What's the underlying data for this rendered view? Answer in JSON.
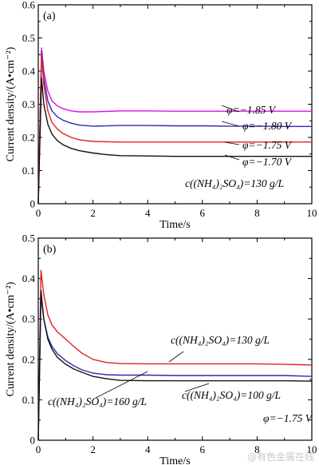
{
  "chart_data": [
    {
      "type": "line",
      "panel_label": "(a)",
      "xlabel": "Time/s",
      "ylabel": "Current density/(A•cm⁻²)",
      "xlim": [
        0,
        10
      ],
      "ylim": [
        0,
        0.6
      ],
      "x_ticks": [
        0,
        2,
        4,
        6,
        8,
        10
      ],
      "y_ticks": [
        "0",
        "0.1",
        "0.2",
        "0.3",
        "0.4",
        "0.5",
        "0.6"
      ],
      "condition_text": "c((NH₄)₂SO₄)=130 g/L",
      "series": [
        {
          "label": "φ=−1.85 V",
          "color": "#e010e0",
          "x": [
            0,
            0.12,
            0.2,
            0.35,
            0.5,
            0.7,
            0.9,
            1.2,
            1.5,
            2,
            3,
            4,
            5,
            6,
            7,
            8,
            9,
            10
          ],
          "y": [
            0.0,
            0.47,
            0.4,
            0.34,
            0.31,
            0.295,
            0.287,
            0.28,
            0.277,
            0.277,
            0.28,
            0.28,
            0.279,
            0.279,
            0.279,
            0.279,
            0.279,
            0.279
          ]
        },
        {
          "label": "φ=−1.80 V",
          "color": "#2a2ab8",
          "x": [
            0,
            0.12,
            0.2,
            0.35,
            0.5,
            0.7,
            0.9,
            1.2,
            1.5,
            2,
            3,
            4,
            5,
            6,
            7,
            8,
            9,
            10
          ],
          "y": [
            0.0,
            0.46,
            0.38,
            0.31,
            0.28,
            0.262,
            0.252,
            0.243,
            0.237,
            0.234,
            0.236,
            0.236,
            0.235,
            0.235,
            0.234,
            0.234,
            0.233,
            0.233
          ]
        },
        {
          "label": "φ=−1.75 V",
          "color": "#e02020",
          "x": [
            0,
            0.12,
            0.2,
            0.35,
            0.5,
            0.7,
            0.9,
            1.2,
            1.5,
            2,
            3,
            4,
            5,
            6,
            7,
            8,
            9,
            10
          ],
          "y": [
            0.0,
            0.45,
            0.36,
            0.28,
            0.245,
            0.225,
            0.212,
            0.2,
            0.193,
            0.188,
            0.186,
            0.186,
            0.186,
            0.186,
            0.186,
            0.186,
            0.186,
            0.186
          ]
        },
        {
          "label": "φ=−1.70 V",
          "color": "#111111",
          "x": [
            0,
            0.12,
            0.2,
            0.35,
            0.5,
            0.7,
            0.9,
            1.2,
            1.5,
            2,
            2.5,
            3,
            4,
            5,
            6,
            7,
            8,
            9,
            10
          ],
          "y": [
            0.0,
            0.38,
            0.3,
            0.24,
            0.21,
            0.19,
            0.178,
            0.167,
            0.16,
            0.153,
            0.148,
            0.145,
            0.144,
            0.143,
            0.143,
            0.143,
            0.143,
            0.143,
            0.143
          ]
        }
      ]
    },
    {
      "type": "line",
      "panel_label": "(b)",
      "xlabel": "Time/s",
      "ylabel": "Current density/(A•cm⁻²)",
      "xlim": [
        0,
        10
      ],
      "ylim": [
        0,
        0.5
      ],
      "x_ticks": [
        0,
        2,
        4,
        6,
        8,
        10
      ],
      "y_ticks": [
        "0",
        "0.1",
        "0.2",
        "0.3",
        "0.4",
        "0.5"
      ],
      "condition_text": "φ=−1.75 V",
      "series": [
        {
          "label": "c((NH₄)₂SO₄)=130 g/L",
          "color": "#e02020",
          "x": [
            0,
            0.1,
            0.2,
            0.35,
            0.5,
            0.7,
            1.0,
            1.3,
            1.6,
            2,
            2.5,
            3,
            4,
            5,
            6,
            7,
            8,
            9,
            10
          ],
          "y": [
            0.0,
            0.42,
            0.36,
            0.31,
            0.285,
            0.268,
            0.25,
            0.232,
            0.215,
            0.2,
            0.192,
            0.19,
            0.189,
            0.189,
            0.189,
            0.189,
            0.189,
            0.188,
            0.186
          ]
        },
        {
          "label": "c((NH₄)₂SO₄)=160 g/L",
          "color": "#2a2ab8",
          "x": [
            0,
            0.1,
            0.2,
            0.35,
            0.5,
            0.7,
            1.0,
            1.3,
            1.6,
            2,
            2.5,
            3,
            4,
            5,
            6,
            7,
            8,
            9,
            10
          ],
          "y": [
            0.0,
            0.36,
            0.3,
            0.255,
            0.232,
            0.214,
            0.197,
            0.184,
            0.174,
            0.166,
            0.162,
            0.161,
            0.161,
            0.16,
            0.16,
            0.16,
            0.16,
            0.16,
            0.158
          ]
        },
        {
          "label": "c((NH₄)₂SO₄)=100 g/L",
          "color": "#111111",
          "x": [
            0,
            0.1,
            0.2,
            0.35,
            0.5,
            0.7,
            1.0,
            1.3,
            1.6,
            2,
            2.5,
            3,
            4,
            5,
            6,
            7,
            8,
            9,
            10
          ],
          "y": [
            0.0,
            0.37,
            0.3,
            0.25,
            0.225,
            0.205,
            0.188,
            0.176,
            0.168,
            0.158,
            0.152,
            0.148,
            0.147,
            0.147,
            0.147,
            0.147,
            0.147,
            0.147,
            0.146
          ]
        }
      ]
    }
  ],
  "watermark": "@有色金属在线"
}
